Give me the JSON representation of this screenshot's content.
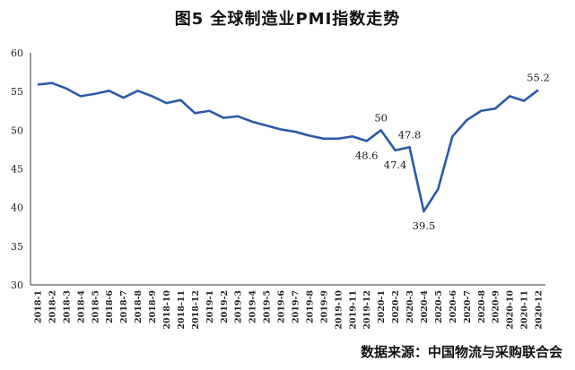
{
  "chart_data": {
    "type": "line",
    "title": "图5  全球制造业PMI指数走势",
    "source": "数据来源：中国物流与采购联合会",
    "ylim": [
      30,
      60
    ],
    "yticks": [
      30,
      35,
      40,
      45,
      50,
      55,
      60
    ],
    "grid": false,
    "line_color": "#2b5aa8",
    "categories": [
      "2018-1",
      "2018-2",
      "2018-3",
      "2018-4",
      "2018-5",
      "2018-6",
      "2018-7",
      "2018-8",
      "2018-9",
      "2018-10",
      "2018-11",
      "2018-12",
      "2019-1",
      "2019-2",
      "2019-3",
      "2019-4",
      "2019-5",
      "2019-6",
      "2019-7",
      "2019-8",
      "2019-9",
      "2019-10",
      "2019-11",
      "2019-12",
      "2020-1",
      "2020-2",
      "2020-3",
      "2020-4",
      "2020-5",
      "2020-6",
      "2020-7",
      "2020-8",
      "2020-9",
      "2020-10",
      "2020-11",
      "2020-12"
    ],
    "values": [
      55.9,
      56.1,
      55.4,
      54.4,
      54.7,
      55.1,
      54.2,
      55.1,
      54.4,
      53.5,
      53.9,
      52.2,
      52.5,
      51.6,
      51.8,
      51.1,
      50.6,
      50.1,
      49.8,
      49.3,
      48.9,
      48.9,
      49.2,
      48.6,
      50.0,
      47.4,
      47.8,
      39.5,
      42.4,
      49.2,
      51.3,
      52.5,
      52.8,
      54.4,
      53.8,
      55.2
    ],
    "annotations": [
      {
        "index": 23,
        "text": "48.6",
        "pos": "below"
      },
      {
        "index": 24,
        "text": "50",
        "pos": "above"
      },
      {
        "index": 25,
        "text": "47.4",
        "pos": "below"
      },
      {
        "index": 26,
        "text": "47.8",
        "pos": "above"
      },
      {
        "index": 27,
        "text": "39.5",
        "pos": "below"
      },
      {
        "index": 35,
        "text": "55.2",
        "pos": "above"
      }
    ]
  }
}
